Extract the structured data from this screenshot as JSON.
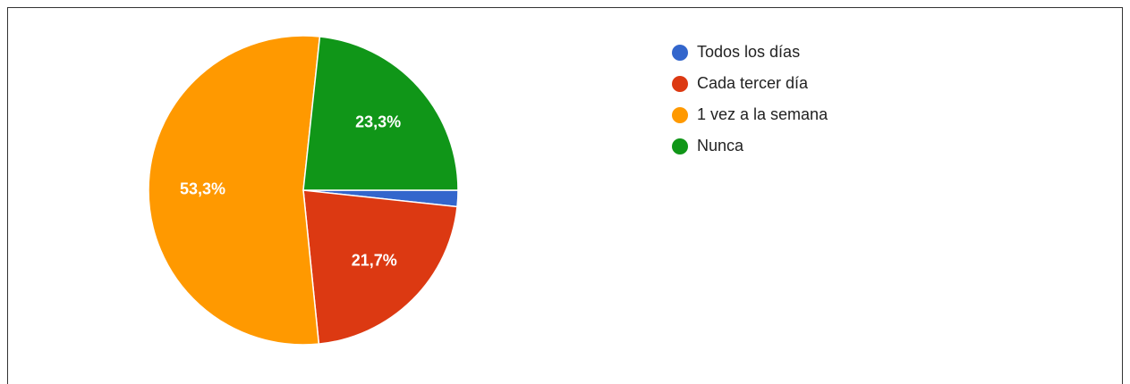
{
  "chart_data": {
    "type": "pie",
    "categories": [
      "Todos los días",
      "Cada tercer día",
      "1 vez a la semana",
      "Nunca"
    ],
    "values": [
      1.7,
      21.7,
      53.3,
      23.3
    ],
    "value_labels": [
      null,
      "21,7%",
      "53,3%",
      "23,3%"
    ],
    "colors": [
      "#3366cc",
      "#dc3912",
      "#ff9900",
      "#109618"
    ],
    "start_angle": 90,
    "legend": "right"
  }
}
